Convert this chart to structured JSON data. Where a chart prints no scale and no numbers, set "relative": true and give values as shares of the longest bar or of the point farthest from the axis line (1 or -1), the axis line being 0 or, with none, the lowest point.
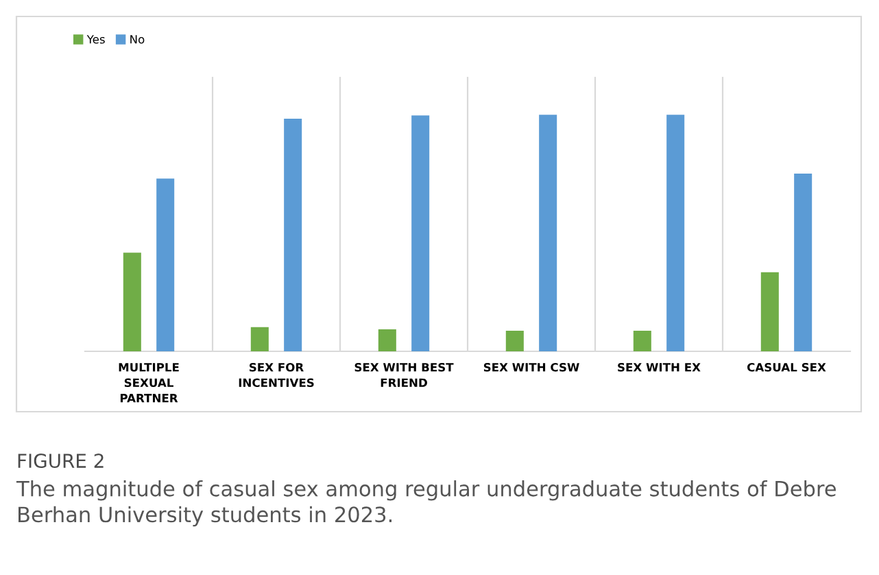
{
  "chart_data": {
    "type": "bar",
    "relative": true,
    "categories": [
      "MULTIPLE\nSEXUAL\nPARTNER",
      "SEX FOR\nINCENTIVES",
      "SEX WITH BEST\nFRIEND",
      "SEX WITH CSW",
      "SEX WITH EX",
      "CASUAL SEX"
    ],
    "series": [
      {
        "name": "Yes",
        "color": "#70ad47",
        "values": [
          0.417,
          0.102,
          0.093,
          0.087,
          0.087,
          0.334
        ]
      },
      {
        "name": "No",
        "color": "#5b9bd5",
        "values": [
          0.73,
          0.983,
          0.997,
          1.0,
          1.0,
          0.751
        ]
      }
    ],
    "legend": "top left",
    "grid": "x",
    "annotations": [
      "FIGURE 2",
      "The magnitude of casual sex among regular undergraduate students of Debre Berhan University students in 2023."
    ]
  }
}
